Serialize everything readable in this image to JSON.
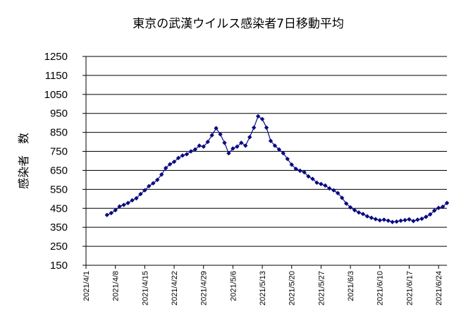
{
  "chart_data": {
    "type": "line",
    "title": "東京の武漢ウイルス感染者7日移動平均",
    "xlabel": "",
    "ylabel": "感染者　数",
    "ylim": [
      150,
      1250
    ],
    "yticks": [
      150,
      250,
      350,
      450,
      550,
      650,
      750,
      850,
      950,
      1050,
      1150,
      1250
    ],
    "xlim": [
      "2021/4/1",
      "2021/6/26"
    ],
    "xticks": [
      "2021/4/1",
      "2021/4/8",
      "2021/4/15",
      "2021/4/22",
      "2021/4/29",
      "2021/5/6",
      "2021/5/13",
      "2021/5/20",
      "2021/5/27",
      "2021/6/3",
      "2021/6/10",
      "2021/6/17",
      "2021/6/24"
    ],
    "grid": "horizontal",
    "legend": "none",
    "marker": "diamond",
    "color": "#0a0a80",
    "series": [
      {
        "x": [
          "2021/4/6",
          "2021/4/7",
          "2021/4/8",
          "2021/4/9",
          "2021/4/10",
          "2021/4/11",
          "2021/4/12",
          "2021/4/13",
          "2021/4/14",
          "2021/4/15",
          "2021/4/16",
          "2021/4/17",
          "2021/4/18",
          "2021/4/19",
          "2021/4/20",
          "2021/4/21",
          "2021/4/22",
          "2021/4/23",
          "2021/4/24",
          "2021/4/25",
          "2021/4/26",
          "2021/4/27",
          "2021/4/28",
          "2021/4/29",
          "2021/4/30",
          "2021/5/1",
          "2021/5/2",
          "2021/5/3",
          "2021/5/4",
          "2021/5/5",
          "2021/5/6",
          "2021/5/7",
          "2021/5/8",
          "2021/5/9",
          "2021/5/10",
          "2021/5/11",
          "2021/5/12",
          "2021/5/13",
          "2021/5/14",
          "2021/5/15",
          "2021/5/16",
          "2021/5/17",
          "2021/5/18",
          "2021/5/19",
          "2021/5/20",
          "2021/5/21",
          "2021/5/22",
          "2021/5/23",
          "2021/5/24",
          "2021/5/25",
          "2021/5/26",
          "2021/5/27",
          "2021/5/28",
          "2021/5/29",
          "2021/5/30",
          "2021/5/31",
          "2021/6/1",
          "2021/6/2",
          "2021/6/3",
          "2021/6/4",
          "2021/6/5",
          "2021/6/6",
          "2021/6/7",
          "2021/6/8",
          "2021/6/9",
          "2021/6/10",
          "2021/6/11",
          "2021/6/12",
          "2021/6/13",
          "2021/6/14",
          "2021/6/15",
          "2021/6/16",
          "2021/6/17",
          "2021/6/18",
          "2021/6/19",
          "2021/6/20",
          "2021/6/21",
          "2021/6/22",
          "2021/6/23",
          "2021/6/24",
          "2021/6/25",
          "2021/6/26"
        ],
        "values": [
          415,
          425,
          440,
          460,
          468,
          478,
          492,
          503,
          525,
          545,
          567,
          582,
          600,
          628,
          662,
          682,
          695,
          715,
          728,
          735,
          750,
          760,
          780,
          775,
          800,
          835,
          872,
          840,
          795,
          740,
          765,
          775,
          795,
          780,
          825,
          875,
          935,
          920,
          875,
          805,
          780,
          760,
          740,
          710,
          680,
          658,
          648,
          640,
          618,
          605,
          585,
          578,
          570,
          555,
          545,
          530,
          505,
          475,
          455,
          440,
          428,
          420,
          408,
          400,
          393,
          387,
          390,
          385,
          378,
          380,
          385,
          388,
          392,
          383,
          390,
          395,
          405,
          418,
          438,
          452,
          458,
          478
        ]
      }
    ]
  }
}
